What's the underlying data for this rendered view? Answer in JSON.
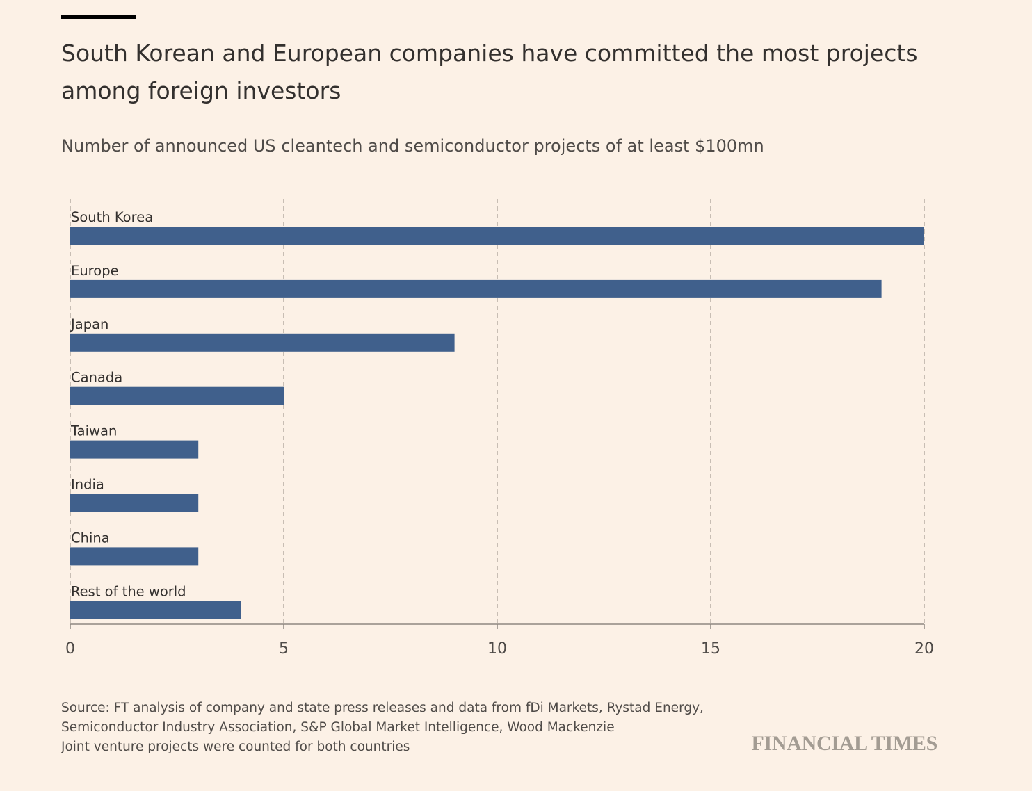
{
  "header": {
    "title": "South Korean and European companies have committed the most projects among foreign investors",
    "subtitle": "Number of announced US cleantech and semiconductor projects of at least $100mn"
  },
  "chart_data": {
    "type": "bar",
    "orientation": "horizontal",
    "categories": [
      "South Korea",
      "Europe",
      "Japan",
      "Canada",
      "Taiwan",
      "India",
      "China",
      "Rest of the world"
    ],
    "values": [
      20,
      19,
      9,
      5,
      3,
      3,
      3,
      4
    ],
    "xlim": [
      0,
      20
    ],
    "xticks": [
      0,
      5,
      10,
      15,
      20
    ],
    "grid": "vertical dashed",
    "colors": {
      "bar": "#40608c",
      "grid": "#b6ada4",
      "axis": "#8f8780"
    }
  },
  "footer": {
    "source_line1": "Source: FT analysis of company and state press releases and data from fDi Markets, Rystad Energy,",
    "source_line2": "Semiconductor Industry Association, S&P Global Market Intelligence, Wood Mackenzie",
    "note": "Joint venture projects were counted for both countries"
  },
  "branding": {
    "logo_text": "FINANCIAL TIMES"
  },
  "colors": {
    "background": "#fcf1e6",
    "text": "#33302e"
  }
}
